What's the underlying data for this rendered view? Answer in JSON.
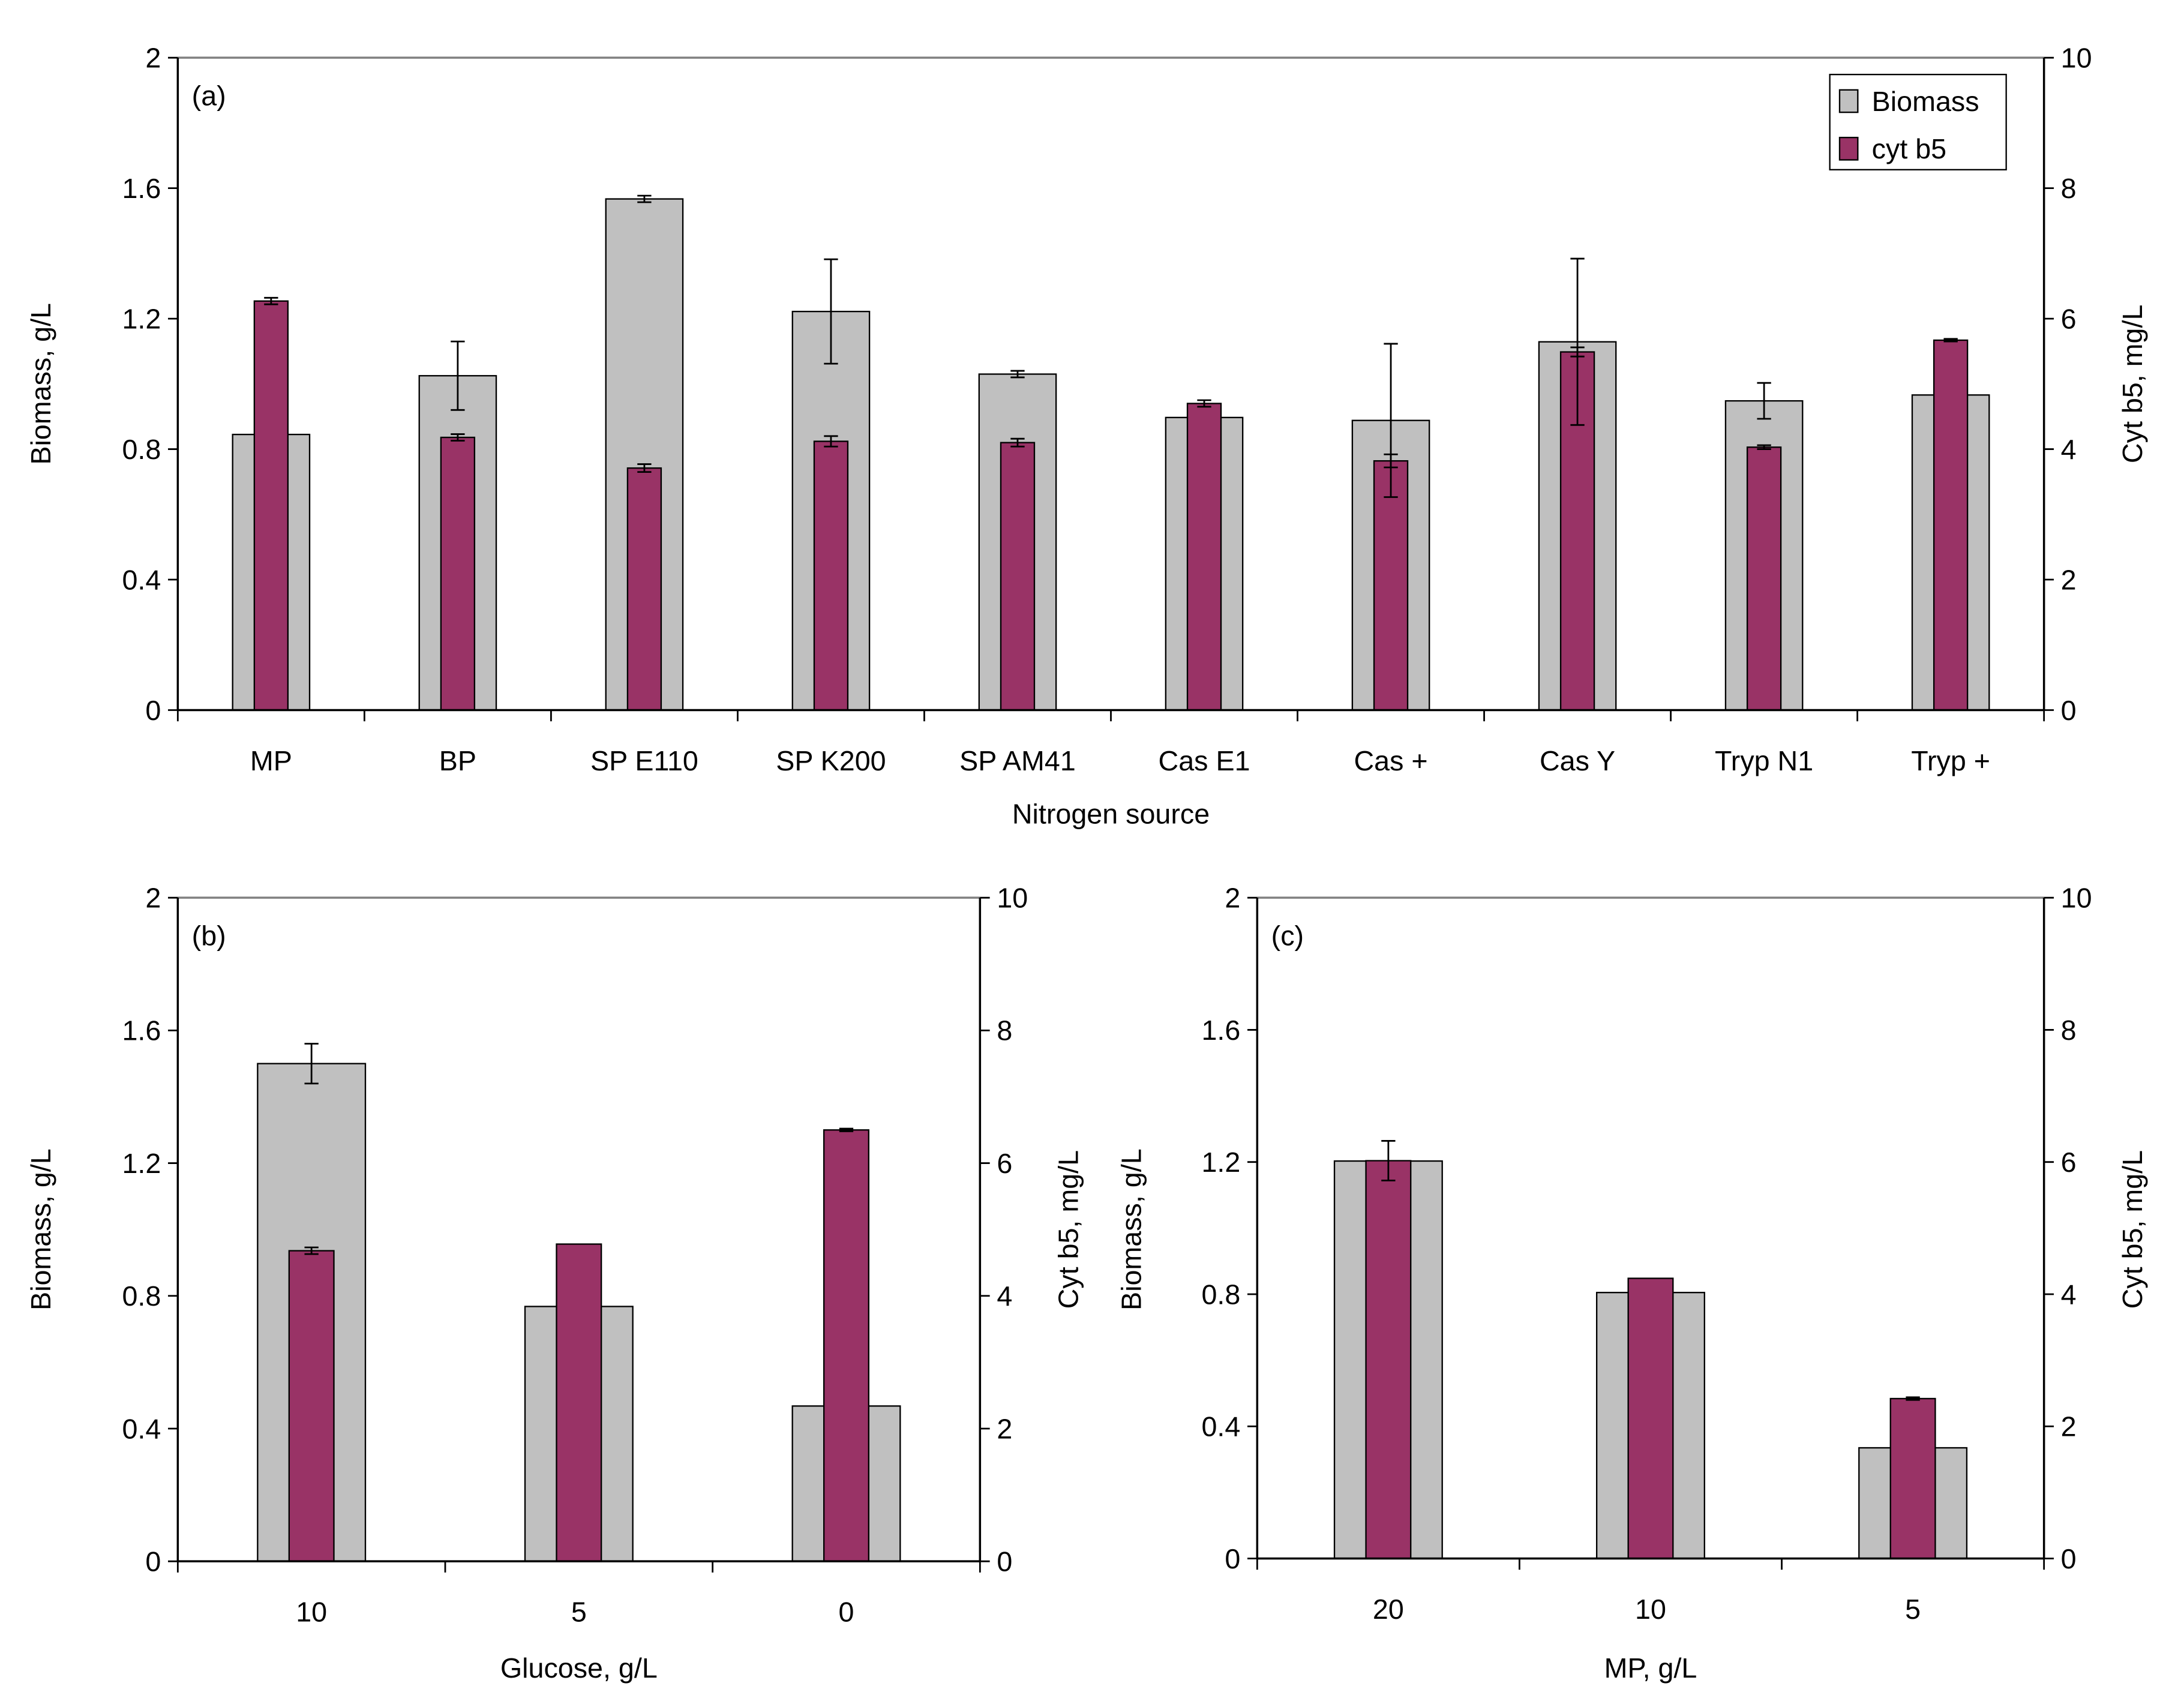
{
  "colors": {
    "biomass": "#C0C0C0",
    "cyt": "#993366",
    "axis": "#000000",
    "frame": "#808080"
  },
  "legend": {
    "biomass": "Biomass",
    "cyt": "cyt b5",
    "placement": "top-right of panel (a)"
  },
  "chart_data": [
    {
      "type": "bar",
      "panel": "(a)",
      "categories": [
        "MP",
        "BP",
        "SP E110",
        "SP K200",
        "SP AM41",
        "Cas E1",
        "Cas +",
        "Cas Y",
        "Tryp N1",
        "Tryp +"
      ],
      "xlabel": "Nitrogen source",
      "ylabel": "Biomass, g/L",
      "y2label": "Cyt b5, mg/L",
      "ylim": [
        0,
        2
      ],
      "yticks": [
        "0",
        "0.4",
        "0.8",
        "1.2",
        "1.6",
        "2"
      ],
      "y2lim": [
        0,
        10
      ],
      "y2ticks": [
        "0",
        "2",
        "4",
        "6",
        "8",
        "10"
      ],
      "series": [
        {
          "name": "Biomass",
          "axis": "left",
          "values": [
            0.845,
            1.025,
            1.567,
            1.222,
            1.03,
            0.897,
            0.888,
            1.129,
            0.948,
            0.966
          ],
          "errors": [
            0,
            0.105,
            0.01,
            0.16,
            0.01,
            0,
            0.235,
            0.255,
            0.055,
            0
          ]
        },
        {
          "name": "cyt b5",
          "axis": "right",
          "values": [
            6.27,
            4.18,
            3.71,
            4.12,
            4.1,
            4.7,
            3.82,
            5.49,
            4.03,
            5.67
          ],
          "errors": [
            0.05,
            0.05,
            0.06,
            0.08,
            0.06,
            0.05,
            0.1,
            0.07,
            0.03,
            0.02
          ]
        }
      ]
    },
    {
      "type": "bar",
      "panel": "(b)",
      "categories": [
        "10",
        "5",
        "0"
      ],
      "xlabel": "Glucose, g/L",
      "ylabel": "Biomass, g/L",
      "y2label": "Cyt b5, mg/L",
      "ylim": [
        0,
        2
      ],
      "yticks": [
        "0",
        "0.4",
        "0.8",
        "1.2",
        "1.6",
        "2"
      ],
      "y2lim": [
        0,
        10
      ],
      "y2ticks": [
        "0",
        "2",
        "4",
        "6",
        "8",
        "10"
      ],
      "series": [
        {
          "name": "Biomass",
          "axis": "left",
          "values": [
            1.5,
            0.768,
            0.468
          ],
          "errors": [
            0.06,
            0,
            0
          ]
        },
        {
          "name": "cyt b5",
          "axis": "right",
          "values": [
            4.68,
            4.78,
            6.5
          ],
          "errors": [
            0.05,
            0,
            0.02
          ]
        }
      ]
    },
    {
      "type": "bar",
      "panel": "(c)",
      "categories": [
        "20",
        "10",
        "5"
      ],
      "xlabel": "MP, g/L",
      "ylabel": "Biomass, g/L",
      "y2label": "Cyt b5, mg/L",
      "ylim": [
        0,
        2
      ],
      "yticks": [
        "0",
        "0.4",
        "0.8",
        "1.2",
        "1.6",
        "2"
      ],
      "y2lim": [
        0,
        10
      ],
      "y2ticks": [
        "0",
        "2",
        "4",
        "6",
        "8",
        "10"
      ],
      "series": [
        {
          "name": "Biomass",
          "axis": "left",
          "values": [
            1.203,
            0.805,
            0.335
          ],
          "errors": [
            0,
            0,
            0
          ]
        },
        {
          "name": "cyt b5",
          "axis": "right",
          "values": [
            6.02,
            4.24,
            2.42
          ],
          "errors": [
            0.3,
            0,
            0.02
          ]
        }
      ]
    }
  ]
}
